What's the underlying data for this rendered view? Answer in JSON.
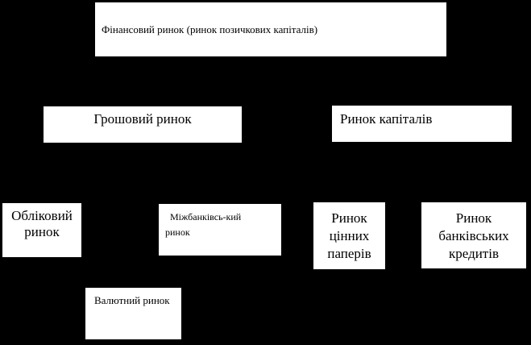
{
  "diagram": {
    "title": "Structure of the financial market (Ukrainian)",
    "colors": {
      "background": "#000000",
      "box_fill": "#ffffff",
      "box_text": "#000000"
    },
    "nodes": {
      "financial_market": {
        "label": "Фінансовий ринок (ринок позичкових капіталів)"
      },
      "money_market": {
        "label": "Грошовий ринок"
      },
      "capital_market": {
        "label": "Ринок капіталів"
      },
      "discount_market": {
        "label": "Обліковий\nринок"
      },
      "interbank_market": {
        "label": "Міжбанківсь-кий\nринок"
      },
      "securities_market": {
        "label": "Ринок\nцінних\nпаперів"
      },
      "bank_credit_market": {
        "label": "Ринок\nбанківських\nкредитів"
      },
      "currency_market": {
        "label": "Валютний ринок"
      }
    }
  }
}
